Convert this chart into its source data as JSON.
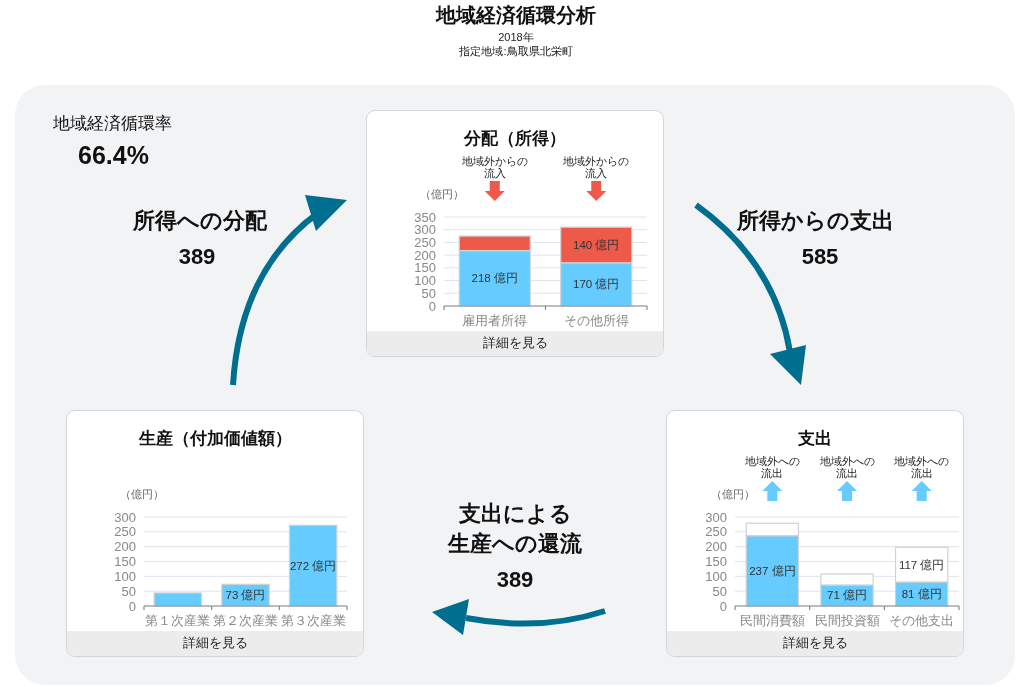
{
  "chart_data": [
    {
      "type": "other",
      "title": "地域経済循環分析",
      "subtitle": "2018年",
      "annotations": [
        "指定地域:鳥取県北栄町",
        "地域経済循環率",
        "66.4%",
        "所得への分配",
        "389",
        "所得からの支出",
        "585",
        "支出による生産への還流",
        "389"
      ]
    },
    {
      "type": "bar",
      "title": "分配（所得）",
      "ylabel": "（億円）",
      "categories": [
        "雇用者所得",
        "その他所得"
      ],
      "stacked": true,
      "series": [
        {
          "color": "#66ccff",
          "values": [
            218,
            170
          ],
          "value_labels": [
            "218 億円",
            "170 億円"
          ]
        },
        {
          "color": "#ee5a4a",
          "values": [
            57,
            140
          ],
          "value_labels": [
            null,
            "140 億円"
          ]
        }
      ],
      "ylim": [
        0,
        350
      ],
      "yticks": [
        0,
        50,
        100,
        150,
        200,
        250,
        300,
        350
      ],
      "grid": "y",
      "annotations": [
        "地域外からの流入",
        "地域外からの流入",
        "詳細を見る"
      ]
    },
    {
      "type": "bar",
      "title": "生産（付加価値額）",
      "ylabel": "（億円）",
      "categories": [
        "第１次産業",
        "第２次産業",
        "第３次産業"
      ],
      "color": "#66ccff",
      "values": [
        44,
        73,
        272
      ],
      "value_labels": [
        null,
        "73 億円",
        "272 億円"
      ],
      "ylim": [
        0,
        300
      ],
      "yticks": [
        0,
        50,
        100,
        150,
        200,
        250,
        300
      ],
      "grid": "y",
      "annotations": [
        "詳細を見る"
      ]
    },
    {
      "type": "bar",
      "title": "支出",
      "ylabel": "（億円）",
      "categories": [
        "民間消費額",
        "民間投資額",
        "その他支出"
      ],
      "stacked": true,
      "series": [
        {
          "color": "#66ccff",
          "values": [
            237,
            71,
            81
          ],
          "value_labels": [
            "237 億円",
            "71 億円",
            "81 億円"
          ]
        },
        {
          "color": "#ffffff",
          "values": [
            42,
            37,
            117
          ],
          "value_labels": [
            null,
            null,
            "117 億円"
          ]
        }
      ],
      "ylim": [
        0,
        300
      ],
      "yticks": [
        0,
        50,
        100,
        150,
        200,
        250,
        300
      ],
      "grid": "y",
      "annotations": [
        "地域外への流出",
        "地域外への流出",
        "地域外への流出",
        "詳細を見る"
      ]
    }
  ]
}
